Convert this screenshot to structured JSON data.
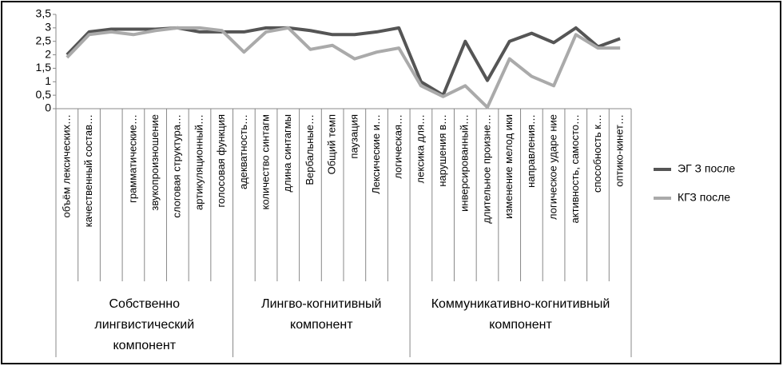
{
  "chart_data": {
    "type": "line",
    "categories": [
      "объём лексических…",
      "качественный состав…",
      null,
      "грамматические…",
      "звукопроизношение",
      "слоговая структура…",
      "артикуляционный…",
      "голосовая функция",
      "адекватность…",
      "количество синтагм",
      "длина синтагмы",
      "Вербальные…",
      "Общий темп",
      "паузация",
      "Лексические и…",
      "логическая…",
      "лексика для…",
      "нарушения в…",
      "инверсированный…",
      "длительное произне…",
      "изменение мелод ики",
      "направления…",
      "логическое ударе ние",
      "активность, самосто…",
      "способность к…",
      "оптико-кинет…"
    ],
    "groups": [
      {
        "name": "Собственно лингвистический компонент",
        "count": 8
      },
      {
        "name": "Лингво-когнитивный компонент",
        "count": 8
      },
      {
        "name": "Коммуникативно-когнитивный компонент",
        "count": 10
      }
    ],
    "series": [
      {
        "name": "ЭГ З после",
        "color": "#555555",
        "values": [
          2,
          2.85,
          2.95,
          2.95,
          2.95,
          3,
          2.85,
          2.85,
          2.85,
          3,
          3,
          2.9,
          2.75,
          2.75,
          2.85,
          3,
          1,
          0.5,
          2.5,
          1.05,
          2.5,
          2.8,
          2.45,
          3,
          2.3,
          2.6
        ]
      },
      {
        "name": "КГЗ после",
        "color": "#aaaaaa",
        "values": [
          1.9,
          2.75,
          2.85,
          2.75,
          2.9,
          3,
          3,
          2.9,
          2.1,
          2.85,
          3,
          2.2,
          2.35,
          1.85,
          2.1,
          2.25,
          0.85,
          0.45,
          0.85,
          0.05,
          1.85,
          1.2,
          0.85,
          2.75,
          2.25,
          2.25
        ]
      }
    ],
    "ylim": [
      0,
      3.5
    ],
    "yticks": [
      0,
      {
        "value": 0.5,
        "label": "0,5"
      },
      1,
      {
        "value": 1.5,
        "label": "1,5"
      },
      2,
      {
        "value": 2.5,
        "label": "2,5"
      },
      3,
      {
        "value": 3.5,
        "label": "3,5"
      }
    ],
    "grid": false,
    "legend": "right"
  }
}
